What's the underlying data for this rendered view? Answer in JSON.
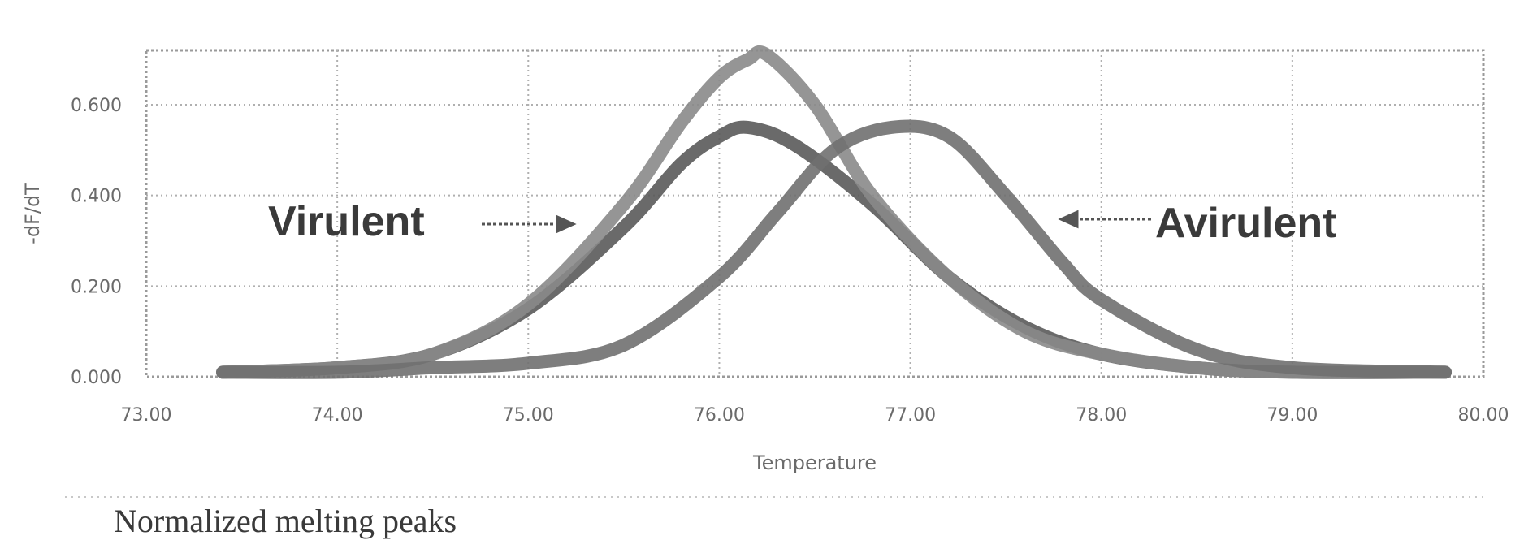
{
  "chart_data": {
    "type": "line",
    "xlabel": "Temperature",
    "ylabel": "-dF/dT",
    "xlim": [
      73,
      80
    ],
    "ylim": [
      0,
      0.72
    ],
    "x_ticks": [
      "73.00",
      "74.00",
      "75.00",
      "76.00",
      "77.00",
      "78.00",
      "79.00",
      "80.00"
    ],
    "y_ticks": [
      "0.000",
      "0.200",
      "0.400",
      "0.600"
    ],
    "grid": true,
    "annotations": [
      "Virulent",
      "Avirulent"
    ],
    "series": [
      {
        "color": "#5a5a5a",
        "x": [
          73.4,
          74.0,
          74.5,
          75.0,
          75.5,
          75.8,
          76.0,
          76.15,
          76.4,
          76.8,
          77.2,
          77.6,
          78.0,
          78.5,
          79.0,
          79.8
        ],
        "y": [
          0.01,
          0.02,
          0.05,
          0.15,
          0.33,
          0.47,
          0.53,
          0.55,
          0.51,
          0.38,
          0.22,
          0.11,
          0.05,
          0.02,
          0.01,
          0.01
        ]
      },
      {
        "color": "#8a8a8a",
        "x": [
          73.4,
          74.0,
          74.5,
          75.0,
          75.5,
          75.8,
          76.0,
          76.15,
          76.25,
          76.5,
          76.8,
          77.2,
          77.6,
          78.0,
          78.5,
          79.0,
          79.8
        ],
        "y": [
          0.01,
          0.02,
          0.05,
          0.16,
          0.38,
          0.56,
          0.66,
          0.7,
          0.71,
          0.6,
          0.4,
          0.22,
          0.1,
          0.05,
          0.02,
          0.01,
          0.01
        ]
      },
      {
        "color": "#707070",
        "x": [
          73.4,
          74.0,
          74.5,
          75.0,
          75.5,
          76.0,
          76.3,
          76.6,
          76.9,
          77.2,
          77.5,
          77.8,
          78.0,
          78.5,
          79.0,
          79.8
        ],
        "y": [
          0.01,
          0.01,
          0.02,
          0.03,
          0.07,
          0.22,
          0.36,
          0.5,
          0.55,
          0.53,
          0.4,
          0.25,
          0.17,
          0.06,
          0.02,
          0.01
        ]
      }
    ]
  },
  "caption": "Normalized melting peaks"
}
